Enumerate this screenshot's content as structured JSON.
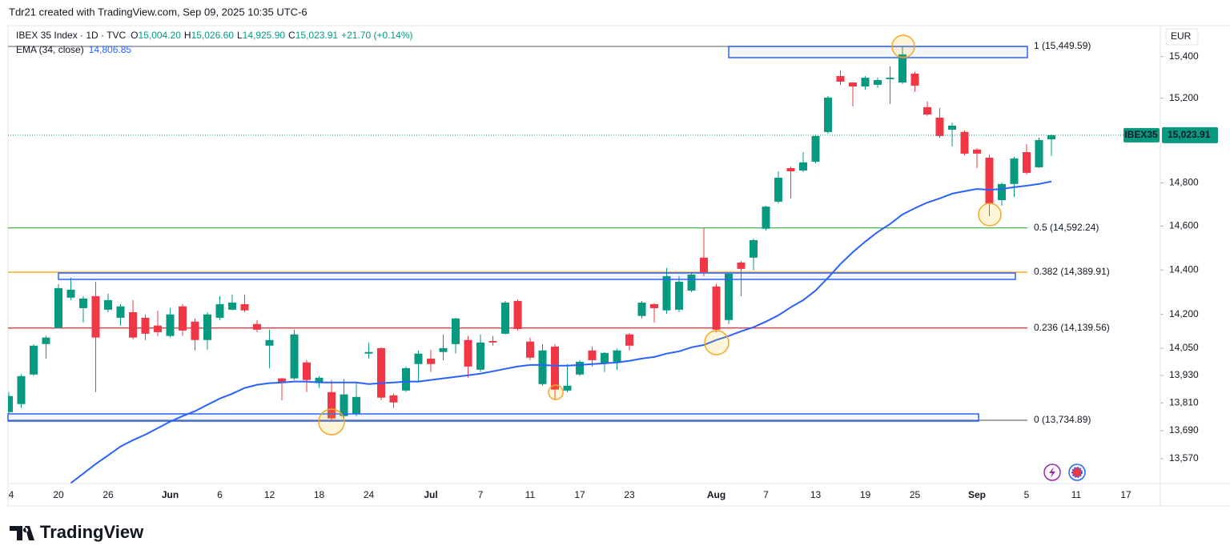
{
  "chart_data": {
    "type": "candlestick",
    "credit": "Tdr21 created with TradingView.com, Sep 09, 2025 10:35 UTC-6",
    "legend": {
      "symbol": "IBEX 35 Index · 1D · TVC",
      "keys": [
        "O",
        "H",
        "L",
        "C"
      ],
      "ohlc": [
        "15,004.20",
        "15,026.60",
        "14,925.90",
        "15,023.91"
      ],
      "change": "+21.70 (+0.14%)",
      "color": "#089981"
    },
    "currency": "EUR",
    "price_tag": {
      "symbol": "IBEX35",
      "price": "15,023.91",
      "color": "#089981"
    },
    "log_scale": true,
    "grid": false,
    "up_color": "#089981",
    "down_color": "#f23645",
    "categories": [
      "4",
      null,
      null,
      null,
      "20",
      null,
      null,
      null,
      "26",
      null,
      null,
      null,
      null,
      "Jun",
      null,
      null,
      null,
      "6",
      null,
      null,
      null,
      "12",
      null,
      null,
      null,
      "18",
      null,
      null,
      null,
      "24",
      null,
      null,
      null,
      null,
      "Jul",
      null,
      null,
      null,
      "7",
      null,
      null,
      null,
      "11",
      null,
      null,
      null,
      "17",
      null,
      null,
      null,
      "23",
      null,
      null,
      null,
      null,
      null,
      null,
      "Aug",
      null,
      null,
      null,
      "7",
      null,
      null,
      null,
      "13",
      null,
      null,
      null,
      "19",
      null,
      null,
      null,
      "25",
      null,
      null,
      null,
      null,
      "Sep",
      null,
      null,
      null,
      "5",
      null,
      null,
      null,
      "11",
      null,
      null,
      null,
      "17"
    ],
    "open": [
      13770,
      13805,
      13934,
      14068,
      14139,
      14275,
      14228,
      14282,
      14221,
      14185,
      14210,
      14185,
      14150,
      14104,
      14236,
      14168,
      14086,
      14185,
      14221,
      14246,
      14157,
      14061,
      13917,
      13917,
      13987,
      13899,
      13857,
      13753,
      13763,
      14026,
      14050,
      13843,
      13864,
      13980,
      14004,
      14033,
      14068,
      14086,
      13955,
      14082,
      14114,
      14260,
      14079,
      13892,
      14057,
      13864,
      13934,
      14040,
      13983,
      13990,
      14111,
      14193,
      14246,
      14218,
      14221,
      14307,
      14456,
      14325,
      14175,
      14434,
      14456,
      14588,
      14713,
      14869,
      14858,
      14899,
      15039,
      15306,
      15275,
      15256,
      15264,
      15291,
      15275,
      15318,
      15157,
      15107,
      15050,
      15039,
      14956,
      14918,
      14720,
      14795,
      14944,
      14873,
      15004.2,
      null,
      null,
      null,
      null,
      null,
      null
    ],
    "high": [
      13857,
      13934,
      14068,
      14104,
      14336,
      14365,
      14282,
      14347,
      14293,
      14246,
      14264,
      14200,
      14218,
      14228,
      14246,
      14182,
      14210,
      14282,
      14289,
      14289,
      14175,
      14132,
      13920,
      14132,
      13997,
      13927,
      13910,
      13913,
      13899,
      14075,
      14054,
      13850,
      13969,
      14040,
      14043,
      14111,
      14185,
      14104,
      14111,
      14104,
      14260,
      14267,
      14097,
      14068,
      14068,
      13980,
      13997,
      14057,
      14033,
      14047,
      14118,
      14260,
      14250,
      14409,
      14372,
      14390,
      14591,
      14336,
      14390,
      14441,
      14543,
      14694,
      14854,
      14877,
      14944,
      15027,
      15210,
      15333,
      15275,
      15306,
      15298,
      15353,
      15450,
      15326,
      15184,
      15153,
      15084,
      15046,
      14963,
      14933,
      14802,
      14922,
      14982,
      15012,
      15026.6,
      null,
      null,
      null,
      null,
      null,
      null
    ],
    "low": [
      13760,
      13788,
      13927,
      14004,
      14139,
      14264,
      14164,
      13857,
      14210,
      14150,
      14089,
      14086,
      14104,
      14097,
      14104,
      14040,
      14043,
      14175,
      14218,
      14210,
      14121,
      13962,
      13822,
      13910,
      13857,
      13875,
      13729,
      13746,
      13753,
      14004,
      13822,
      13788,
      13857,
      13899,
      13945,
      13997,
      14026,
      13920,
      13945,
      14061,
      14111,
      14128,
      13997,
      13885,
      13822,
      13857,
      13927,
      13969,
      13945,
      13955,
      14040,
      14182,
      14164,
      14203,
      14210,
      14300,
      14372,
      14121,
      14157,
      14282,
      14398,
      14580,
      14705,
      14728,
      14850,
      14892,
      15031,
      15264,
      15161,
      15241,
      15249,
      15172,
      15268,
      15230,
      15115,
      15012,
      14971,
      14929,
      14869,
      14646,
      14694,
      14735,
      14839,
      14869,
      14925.9,
      null,
      null,
      null,
      null,
      null,
      null
    ],
    "close": [
      13840,
      13927,
      14061,
      14097,
      14318,
      14311,
      14271,
      14097,
      14264,
      14236,
      14097,
      14114,
      14121,
      14200,
      14128,
      14086,
      14200,
      14246,
      14253,
      14218,
      14132,
      14086,
      13899,
      14111,
      13910,
      13920,
      13743,
      13847,
      13836,
      14033,
      13833,
      13812,
      13962,
      14026,
      13980,
      14050,
      14182,
      13969,
      14075,
      14075,
      14253,
      14135,
      14008,
      14040,
      13868,
      13885,
      13990,
      13997,
      14029,
      14040,
      14061,
      14253,
      14228,
      14372,
      14347,
      14379,
      14390,
      14132,
      14383,
      14405,
      14536,
      14690,
      14824,
      14854,
      14896,
      15020,
      15203,
      15279,
      15256,
      15298,
      15287,
      15298,
      15411,
      15260,
      15122,
      15020,
      15069,
      14937,
      14937,
      14702,
      14795,
      14914,
      14847,
      15001,
      15023.91,
      null,
      null,
      null,
      null,
      null,
      null
    ],
    "ema": {
      "name": "EMA (34, close)",
      "value_label": "14,806.85",
      "color": "#2962ff",
      "values": [
        null,
        null,
        null,
        null,
        null,
        13466,
        13506,
        13547,
        13584,
        13622,
        13649,
        13673,
        13701,
        13729,
        13753,
        13774,
        13802,
        13829,
        13850,
        13875,
        13889,
        13896,
        13899,
        13903,
        13903,
        13899,
        13899,
        13899,
        13899,
        13892,
        13896,
        13899,
        13903,
        13903,
        13910,
        13917,
        13924,
        13931,
        13938,
        13948,
        13959,
        13969,
        13976,
        13976,
        13973,
        13973,
        13976,
        13980,
        13983,
        13987,
        13994,
        14004,
        14011,
        14026,
        14036,
        14054,
        14064,
        14086,
        14104,
        14125,
        14143,
        14168,
        14196,
        14232,
        14264,
        14307,
        14365,
        14427,
        14481,
        14529,
        14573,
        14610,
        14654,
        14683,
        14709,
        14728,
        14750,
        14761,
        14772,
        14768,
        14772,
        14780,
        14787,
        14795,
        14806.85,
        null,
        null,
        null,
        null,
        null,
        null
      ]
    },
    "fib_levels": [
      {
        "label": "1 (15,449.59)",
        "value": 15449.59,
        "color": "#787b86"
      },
      {
        "label": "0.5 (14,592.24)",
        "value": 14592.24,
        "color": "#4caf50"
      },
      {
        "label": "0.382 (14,389.91)",
        "value": 14389.91,
        "color": "#ff9800"
      },
      {
        "label": "0.236 (14,139.56)",
        "value": 14139.56,
        "color": "#f23645"
      },
      {
        "label": "0 (13,734.89)",
        "value": 13734.89,
        "color": "#787b86"
      }
    ],
    "ylim": [
      13464,
      15551
    ],
    "yticks": [
      {
        "value": 15400,
        "label": "15,400"
      },
      {
        "value": 15200,
        "label": "15,200"
      },
      {
        "value": 14800,
        "label": "14,800"
      },
      {
        "value": 14600,
        "label": "14,600"
      },
      {
        "value": 14400,
        "label": "14,400"
      },
      {
        "value": 14200,
        "label": "14,200"
      },
      {
        "value": 14050,
        "label": "14,050"
      },
      {
        "value": 13930,
        "label": "13,930"
      },
      {
        "value": 13810,
        "label": "13,810"
      },
      {
        "value": 13690,
        "label": "13,690"
      },
      {
        "value": 13570,
        "label": "13,570"
      }
    ],
    "footer_logo": "TradingView"
  }
}
